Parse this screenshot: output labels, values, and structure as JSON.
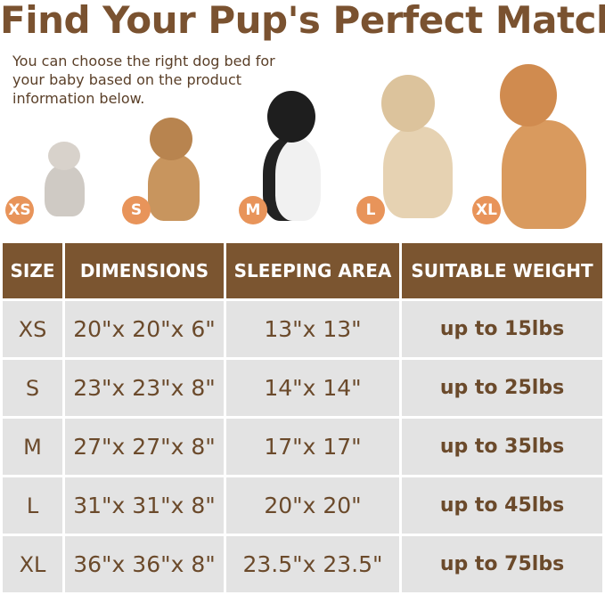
{
  "title": "Find Your Pup's Perfect Match",
  "subtitle": "You can choose the right dog bed for your baby based on the product information below.",
  "colors": {
    "brown_header": "#7b5530",
    "title_brown": "#7a5230",
    "badge_orange": "#e8945a",
    "cell_gray": "#e3e3e3"
  },
  "pets": [
    {
      "badge": "XS",
      "image": "cat"
    },
    {
      "badge": "S",
      "image": "french-bulldog"
    },
    {
      "badge": "M",
      "image": "border-collie"
    },
    {
      "badge": "L",
      "image": "golden-retriever"
    },
    {
      "badge": "XL",
      "image": "golden-retriever-large"
    }
  ],
  "table": {
    "headers": [
      "SIZE",
      "DIMENSIONS",
      "SLEEPING AREA",
      "SUITABLE WEIGHT"
    ],
    "rows": [
      [
        "XS",
        "20\"x 20\"x 6\"",
        "13\"x 13\"",
        "up to 15lbs"
      ],
      [
        "S",
        "23\"x 23\"x 8\"",
        "14\"x 14\"",
        "up to 25lbs"
      ],
      [
        "M",
        "27\"x 27\"x 8\"",
        "17\"x 17\"",
        "up to 35lbs"
      ],
      [
        "L",
        "31\"x 31\"x 8\"",
        "20\"x 20\"",
        "up to 45lbs"
      ],
      [
        "XL",
        "36\"x 36\"x 8\"",
        "23.5\"x 23.5\"",
        "up to 75lbs"
      ]
    ]
  }
}
